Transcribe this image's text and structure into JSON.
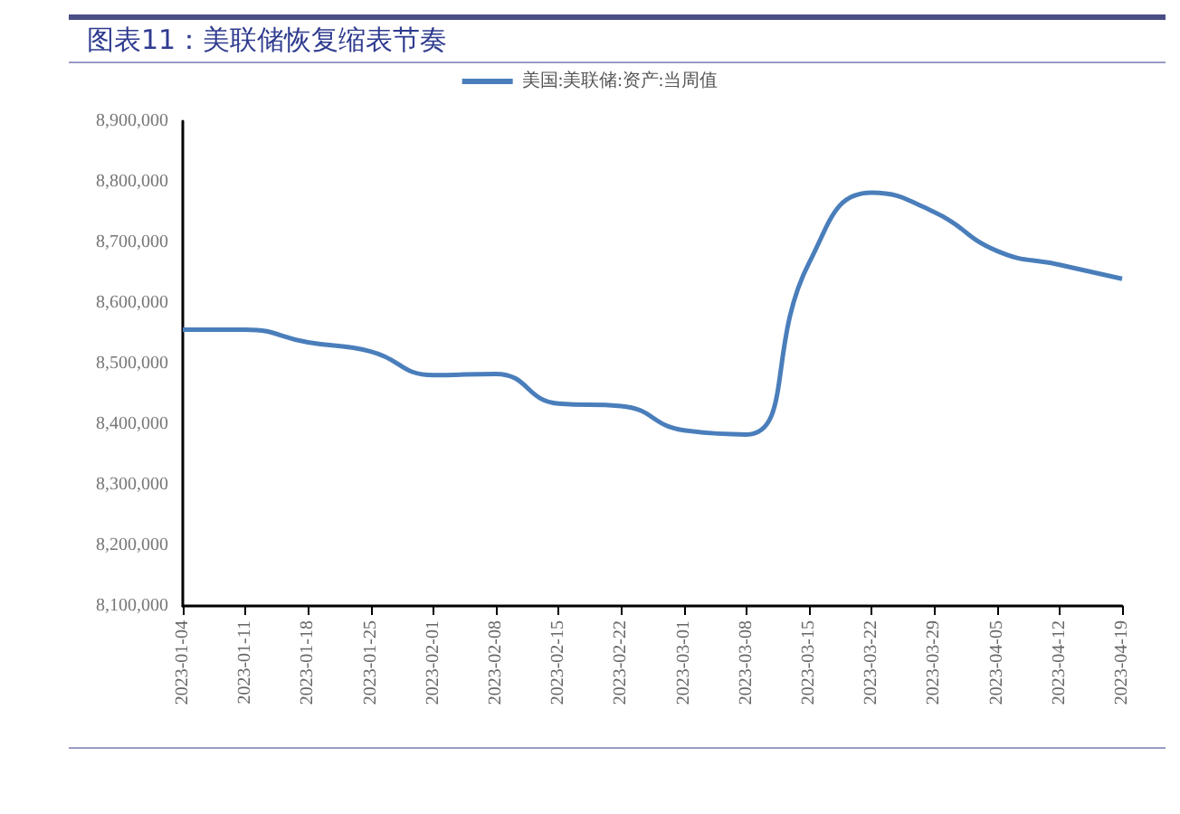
{
  "chart_data": {
    "type": "line",
    "title": "图表11：美联储恢复缩表节奏",
    "categories": [
      "2023-01-04",
      "2023-01-11",
      "2023-01-18",
      "2023-01-25",
      "2023-02-01",
      "2023-02-08",
      "2023-02-15",
      "2023-02-22",
      "2023-03-01",
      "2023-03-08",
      "2023-03-15",
      "2023-03-22",
      "2023-03-29",
      "2023-04-05",
      "2023-04-12",
      "2023-04-19"
    ],
    "series": [
      {
        "name": "美国:美联储:资产:当周值",
        "color": "#4a7ebb",
        "values": [
          8556000,
          8556000,
          8535000,
          8520000,
          8481000,
          8483000,
          8434000,
          8430000,
          8390000,
          8383000,
          8666000,
          8782000,
          8750000,
          8686000,
          8663000,
          8640000
        ]
      }
    ],
    "ylim": [
      8100000,
      8900000
    ],
    "yticks": [
      {
        "value": 8100000,
        "label": "8,100,000"
      },
      {
        "value": 8200000,
        "label": "8,200,000"
      },
      {
        "value": 8300000,
        "label": "8,300,000"
      },
      {
        "value": 8400000,
        "label": "8,400,000"
      },
      {
        "value": 8500000,
        "label": "8,500,000"
      },
      {
        "value": 8600000,
        "label": "8,600,000"
      },
      {
        "value": 8700000,
        "label": "8,700,000"
      },
      {
        "value": 8800000,
        "label": "8,800,000"
      },
      {
        "value": 8900000,
        "label": "8,900,000"
      }
    ],
    "grid": false,
    "legend": "top",
    "marker": "none",
    "line_style": "solid"
  }
}
